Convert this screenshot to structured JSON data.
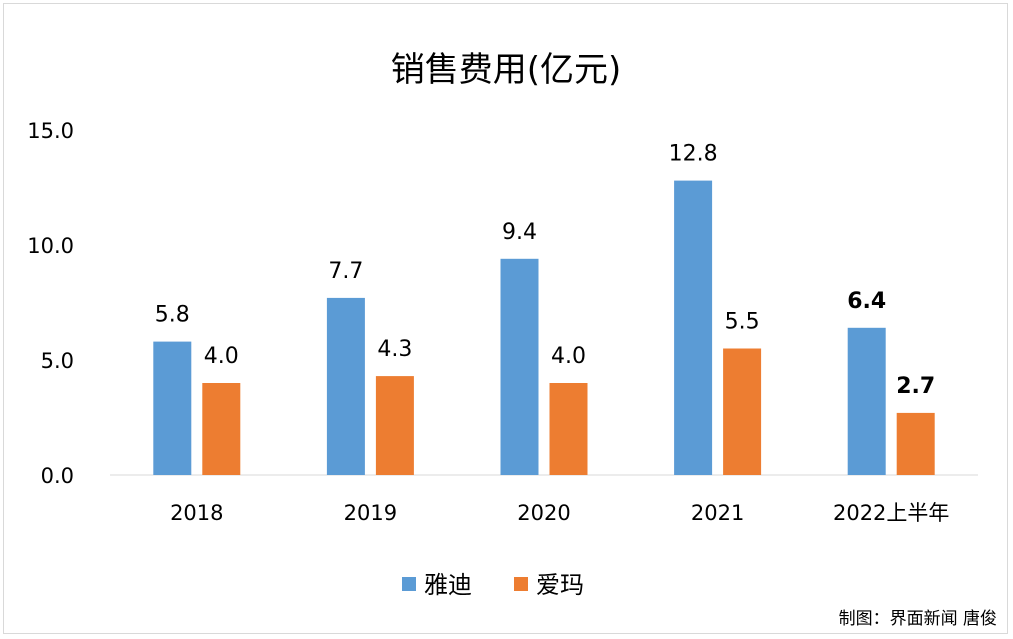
{
  "chart_data": {
    "type": "bar",
    "title": "销售费用(亿元)",
    "categories": [
      "2018",
      "2019",
      "2020",
      "2021",
      "2022上半年"
    ],
    "series": [
      {
        "name": "雅迪",
        "color": "#5b9bd5",
        "values": [
          5.8,
          7.7,
          9.4,
          12.8,
          6.4
        ],
        "labels": [
          "5.8",
          "7.7",
          "9.4",
          "12.8",
          "6.4"
        ]
      },
      {
        "name": "爱玛",
        "color": "#ed7d31",
        "values": [
          4.0,
          4.3,
          4.0,
          5.5,
          2.7
        ],
        "labels": [
          "4.0",
          "4.3",
          "4.0",
          "5.5",
          "2.7"
        ]
      }
    ],
    "bold_label_category_index": 4,
    "ylim": [
      0,
      15
    ],
    "yticks": [
      0,
      5,
      10,
      15
    ],
    "ytick_labels": [
      "0.0",
      "5.0",
      "10.0",
      "15.0"
    ],
    "grid": false,
    "legend_position": "bottom"
  },
  "credit": "制图：界面新闻 唐俊"
}
